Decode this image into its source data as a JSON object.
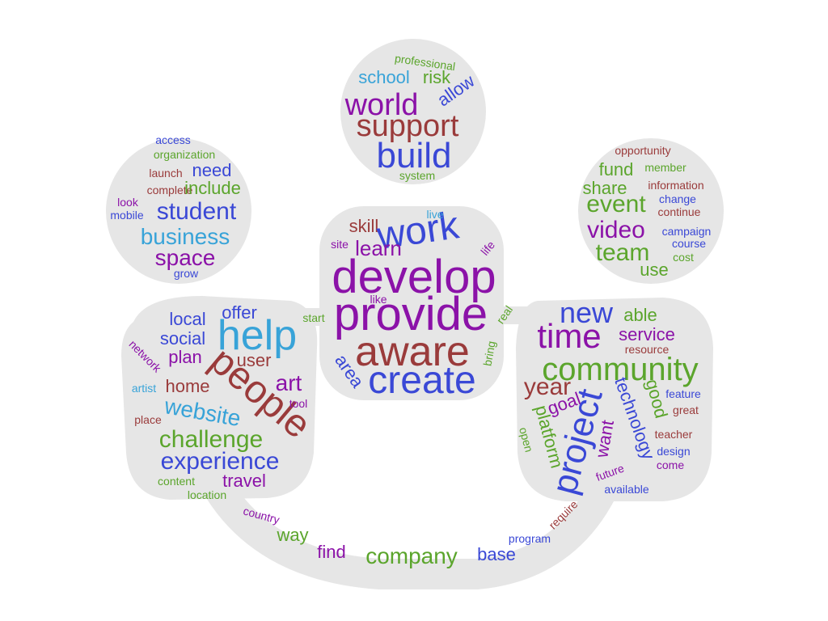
{
  "colors": {
    "blob": "#e6e6e6",
    "purple": "#8b12a8",
    "blue": "#3a48d6",
    "green": "#5ba52c",
    "maroon": "#9a3b3b",
    "cyan": "#38a3d8"
  },
  "words": [
    {
      "text": "professional",
      "color": "green"
    },
    {
      "text": "school",
      "color": "cyan"
    },
    {
      "text": "risk",
      "color": "green"
    },
    {
      "text": "allow",
      "color": "blue"
    },
    {
      "text": "world",
      "color": "purple"
    },
    {
      "text": "support",
      "color": "maroon"
    },
    {
      "text": "build",
      "color": "blue"
    },
    {
      "text": "system",
      "color": "green"
    },
    {
      "text": "access",
      "color": "blue"
    },
    {
      "text": "organization",
      "color": "green"
    },
    {
      "text": "launch",
      "color": "maroon"
    },
    {
      "text": "need",
      "color": "blue"
    },
    {
      "text": "complete",
      "color": "maroon"
    },
    {
      "text": "include",
      "color": "green"
    },
    {
      "text": "look",
      "color": "purple"
    },
    {
      "text": "mobile",
      "color": "blue"
    },
    {
      "text": "student",
      "color": "blue"
    },
    {
      "text": "business",
      "color": "cyan"
    },
    {
      "text": "space",
      "color": "purple"
    },
    {
      "text": "grow",
      "color": "blue"
    },
    {
      "text": "opportunity",
      "color": "maroon"
    },
    {
      "text": "fund",
      "color": "green"
    },
    {
      "text": "member",
      "color": "green"
    },
    {
      "text": "share",
      "color": "green"
    },
    {
      "text": "information",
      "color": "maroon"
    },
    {
      "text": "event",
      "color": "green"
    },
    {
      "text": "change",
      "color": "blue"
    },
    {
      "text": "continue",
      "color": "maroon"
    },
    {
      "text": "video",
      "color": "purple"
    },
    {
      "text": "campaign",
      "color": "blue"
    },
    {
      "text": "team",
      "color": "green"
    },
    {
      "text": "course",
      "color": "blue"
    },
    {
      "text": "cost",
      "color": "green"
    },
    {
      "text": "use",
      "color": "green"
    },
    {
      "text": "skill",
      "color": "maroon"
    },
    {
      "text": "work",
      "color": "blue"
    },
    {
      "text": "live",
      "color": "cyan"
    },
    {
      "text": "site",
      "color": "purple"
    },
    {
      "text": "learn",
      "color": "purple"
    },
    {
      "text": "life",
      "color": "purple"
    },
    {
      "text": "develop",
      "color": "purple"
    },
    {
      "text": "like",
      "color": "purple"
    },
    {
      "text": "provide",
      "color": "purple"
    },
    {
      "text": "start",
      "color": "green"
    },
    {
      "text": "real",
      "color": "green"
    },
    {
      "text": "aware",
      "color": "maroon"
    },
    {
      "text": "bring",
      "color": "green"
    },
    {
      "text": "area",
      "color": "blue"
    },
    {
      "text": "create",
      "color": "blue"
    },
    {
      "text": "local",
      "color": "blue"
    },
    {
      "text": "offer",
      "color": "blue"
    },
    {
      "text": "help",
      "color": "cyan"
    },
    {
      "text": "social",
      "color": "blue"
    },
    {
      "text": "plan",
      "color": "purple"
    },
    {
      "text": "user",
      "color": "maroon"
    },
    {
      "text": "network",
      "color": "purple"
    },
    {
      "text": "people",
      "color": "maroon"
    },
    {
      "text": "home",
      "color": "maroon"
    },
    {
      "text": "art",
      "color": "purple"
    },
    {
      "text": "artist",
      "color": "cyan"
    },
    {
      "text": "tool",
      "color": "purple"
    },
    {
      "text": "website",
      "color": "cyan"
    },
    {
      "text": "place",
      "color": "maroon"
    },
    {
      "text": "challenge",
      "color": "green"
    },
    {
      "text": "experience",
      "color": "blue"
    },
    {
      "text": "content",
      "color": "green"
    },
    {
      "text": "travel",
      "color": "purple"
    },
    {
      "text": "location",
      "color": "green"
    },
    {
      "text": "new",
      "color": "blue"
    },
    {
      "text": "able",
      "color": "green"
    },
    {
      "text": "time",
      "color": "purple"
    },
    {
      "text": "service",
      "color": "purple"
    },
    {
      "text": "resource",
      "color": "maroon"
    },
    {
      "text": "community",
      "color": "green"
    },
    {
      "text": "year",
      "color": "maroon"
    },
    {
      "text": "good",
      "color": "green"
    },
    {
      "text": "technology",
      "color": "blue"
    },
    {
      "text": "goal",
      "color": "purple"
    },
    {
      "text": "feature",
      "color": "blue"
    },
    {
      "text": "project",
      "color": "blue"
    },
    {
      "text": "great",
      "color": "maroon"
    },
    {
      "text": "platform",
      "color": "green"
    },
    {
      "text": "want",
      "color": "purple"
    },
    {
      "text": "open",
      "color": "green"
    },
    {
      "text": "teacher",
      "color": "maroon"
    },
    {
      "text": "design",
      "color": "blue"
    },
    {
      "text": "future",
      "color": "purple"
    },
    {
      "text": "come",
      "color": "purple"
    },
    {
      "text": "available",
      "color": "blue"
    },
    {
      "text": "country",
      "color": "purple"
    },
    {
      "text": "way",
      "color": "green"
    },
    {
      "text": "find",
      "color": "purple"
    },
    {
      "text": "company",
      "color": "green"
    },
    {
      "text": "base",
      "color": "blue"
    },
    {
      "text": "program",
      "color": "blue"
    },
    {
      "text": "require",
      "color": "maroon"
    }
  ]
}
